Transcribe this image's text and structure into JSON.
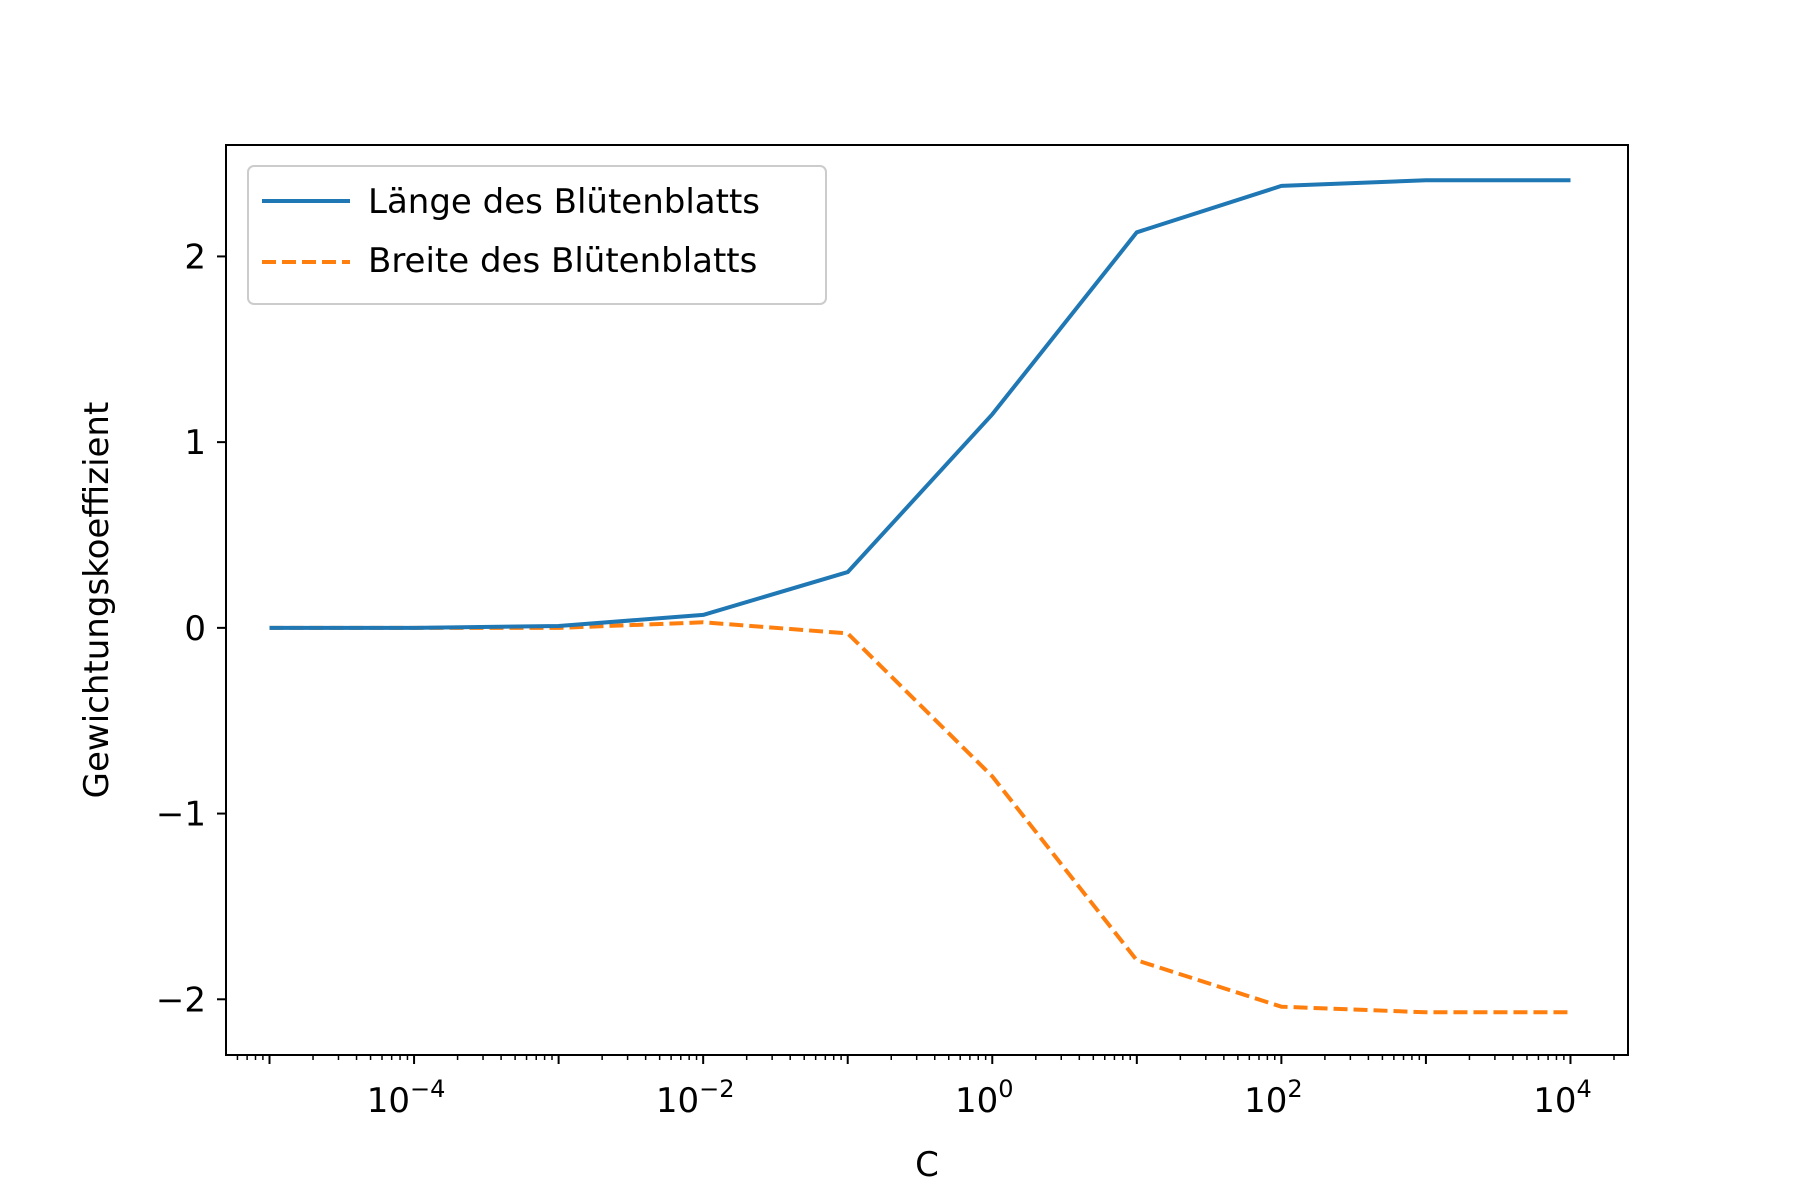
{
  "chart_data": {
    "type": "line",
    "xlabel": "C",
    "ylabel": "Gewichtungskoeffizient",
    "xscale": "log",
    "xlim": [
      5e-06,
      25000
    ],
    "ylim": [
      -2.3,
      2.6
    ],
    "x": [
      1e-05,
      0.0001,
      0.001,
      0.01,
      0.1,
      1,
      10,
      100,
      1000,
      10000
    ],
    "series": [
      {
        "name": "Länge des Blütenblatts",
        "color": "#1f77b4",
        "style": "solid",
        "values": [
          0.0,
          0.0,
          0.01,
          0.07,
          0.3,
          1.15,
          2.13,
          2.38,
          2.41,
          2.41
        ]
      },
      {
        "name": "Breite des Blütenblatts",
        "color": "#ff7f0e",
        "style": "dashed",
        "values": [
          0.0,
          0.0,
          0.0,
          0.03,
          -0.03,
          -0.8,
          -1.79,
          -2.04,
          -2.07,
          -2.07
        ]
      }
    ],
    "x_major_ticks": [
      {
        "value": 0.0001,
        "base": "10",
        "exp": "−4"
      },
      {
        "value": 0.01,
        "base": "10",
        "exp": "−2"
      },
      {
        "value": 1,
        "base": "10",
        "exp": "0"
      },
      {
        "value": 100,
        "base": "10",
        "exp": "2"
      },
      {
        "value": 10000,
        "base": "10",
        "exp": "4"
      }
    ],
    "y_ticks": [
      {
        "value": 2,
        "label": "2"
      },
      {
        "value": 1,
        "label": "1"
      },
      {
        "value": 0,
        "label": "0"
      },
      {
        "value": -1,
        "label": "−1"
      },
      {
        "value": -2,
        "label": "−2"
      }
    ],
    "grid": false,
    "legend_position": "upper-left"
  }
}
